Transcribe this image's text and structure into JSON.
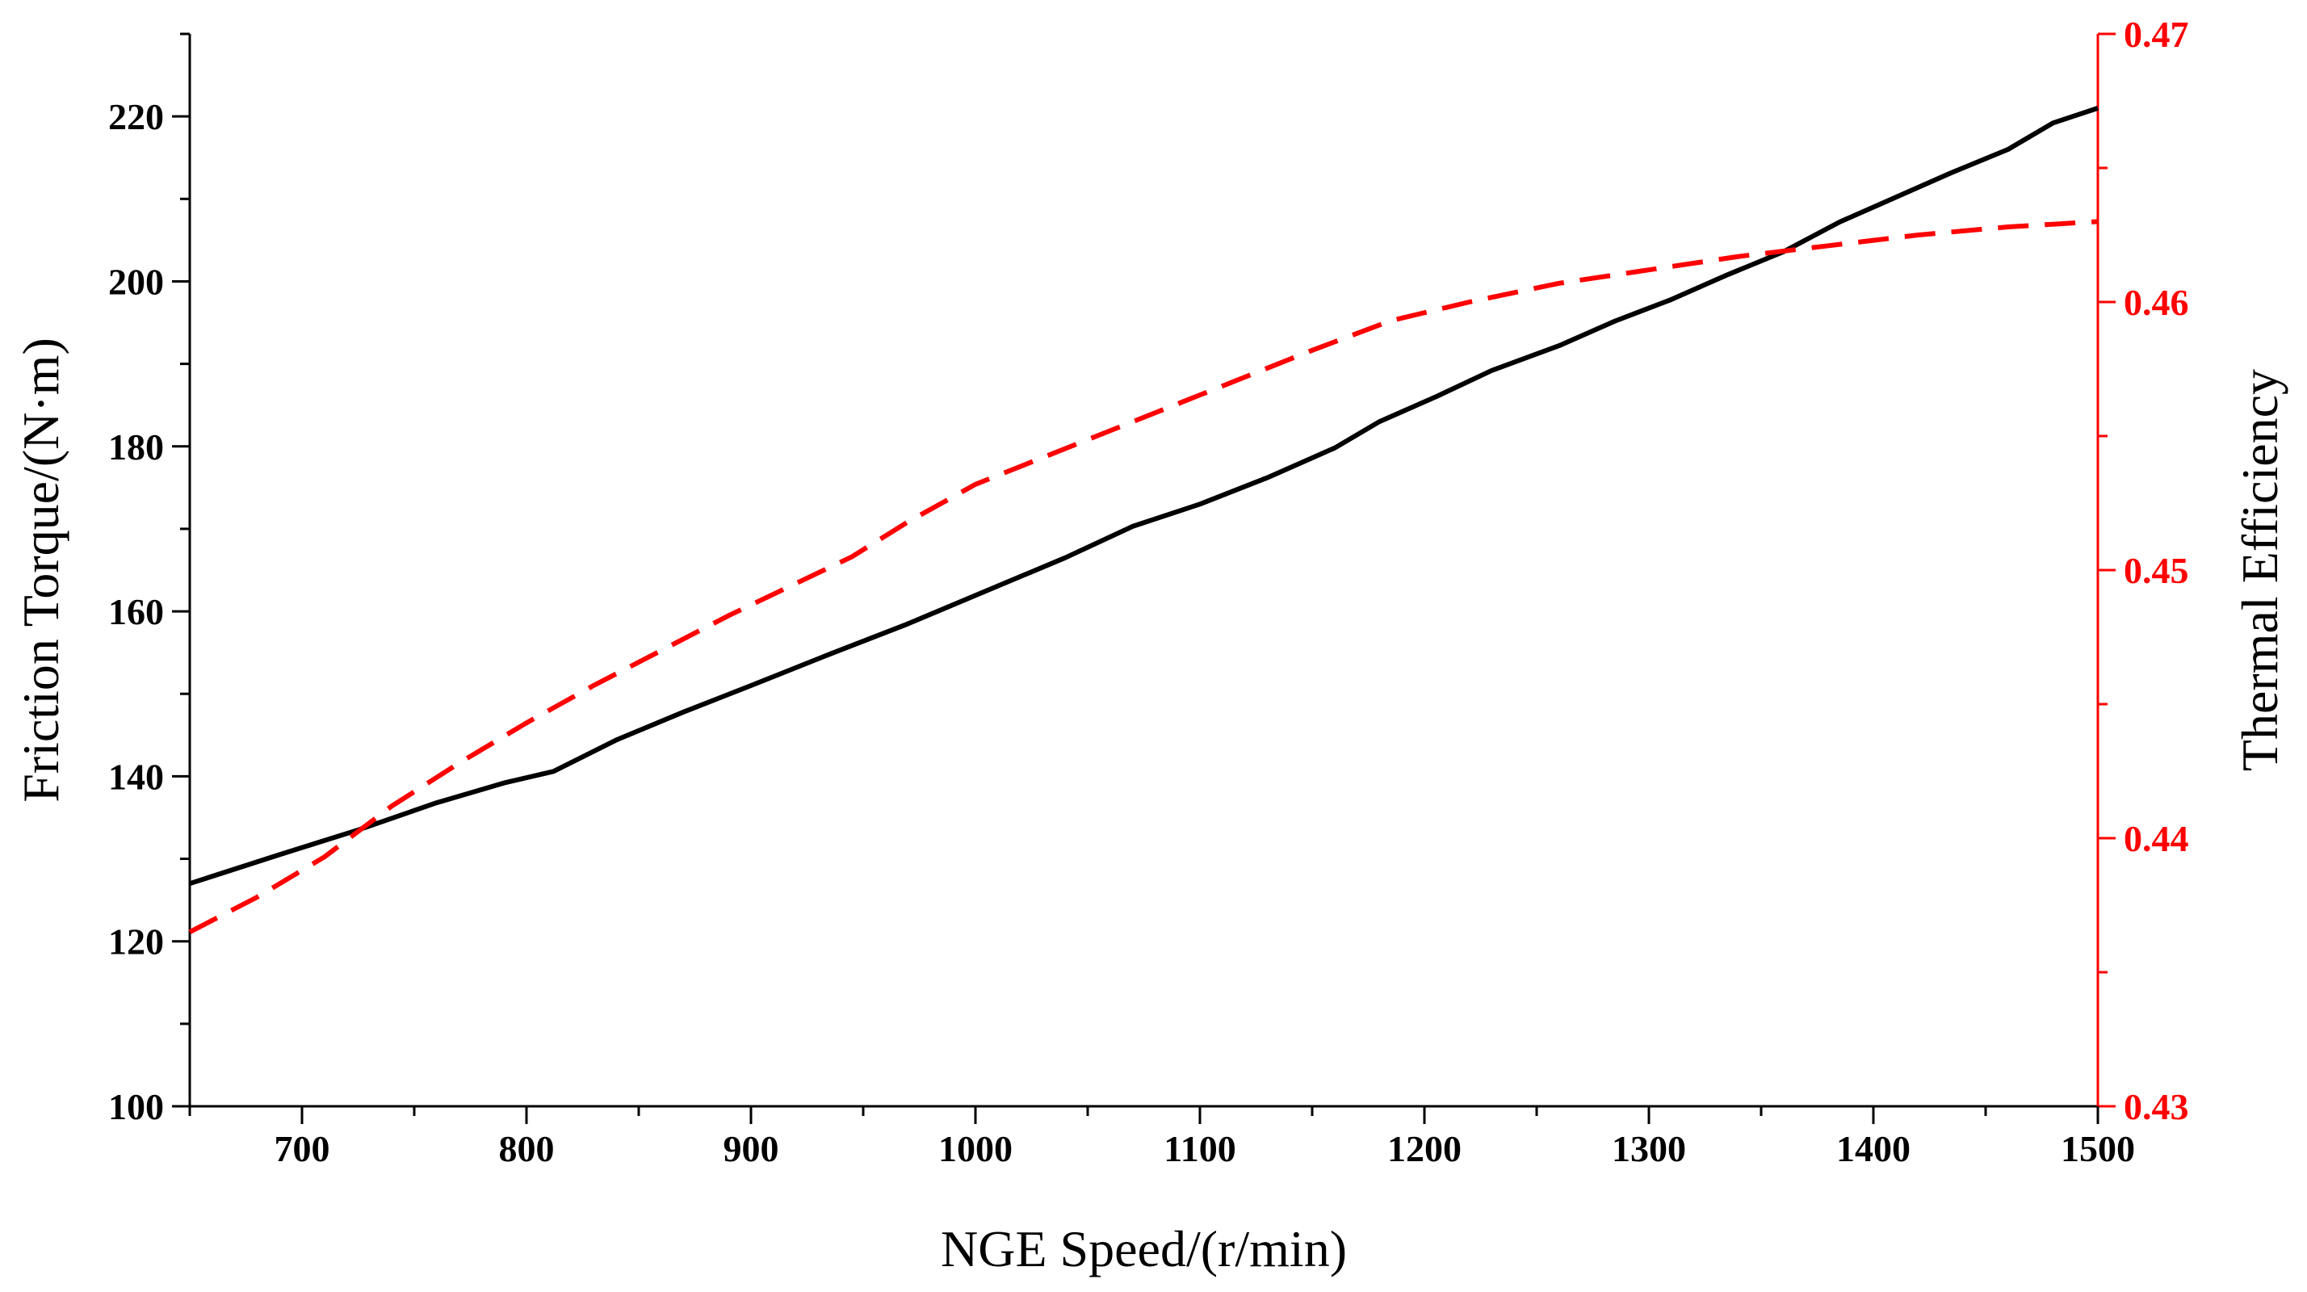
{
  "chart_data": {
    "type": "line",
    "title": "",
    "xlabel": "NGE Speed/(r/min)",
    "ylabel": "Friction Torque/(N·m)",
    "y2label": "Thermal Efficiency",
    "xlim": [
      650,
      1500
    ],
    "ylim": [
      100,
      230
    ],
    "y2lim": [
      0.43,
      0.47
    ],
    "x_ticks": [
      700,
      800,
      900,
      1000,
      1100,
      1200,
      1300,
      1400,
      1500
    ],
    "y_ticks": [
      100,
      120,
      140,
      160,
      180,
      200,
      220
    ],
    "y2_ticks": [
      "0.43",
      "0.44",
      "0.45",
      "0.46",
      "0.47"
    ],
    "colors": {
      "torque": "#000000",
      "efficiency": "#ff0000",
      "axis": "#000000",
      "right_axis": "#ff0000"
    },
    "series": [
      {
        "name": "Friction Torque",
        "axis": "left",
        "style": "solid",
        "x": [
          650,
          690,
          725,
          760,
          790,
          812,
          840,
          870,
          900,
          935,
          970,
          1005,
          1040,
          1070,
          1100,
          1130,
          1160,
          1180,
          1205,
          1230,
          1260,
          1285,
          1310,
          1335,
          1360,
          1385,
          1410,
          1435,
          1460,
          1480,
          1500
        ],
        "values": [
          127,
          130.5,
          133.5,
          136.8,
          139.2,
          140.6,
          144.4,
          147.8,
          151.0,
          154.8,
          158.5,
          162.5,
          166.5,
          170.3,
          173.0,
          176.2,
          179.8,
          183.0,
          186.0,
          189.2,
          192.2,
          195.2,
          197.8,
          200.8,
          203.6,
          207.2,
          210.2,
          213.2,
          216.0,
          219.2,
          221.0
        ]
      },
      {
        "name": "Thermal Efficiency",
        "axis": "right",
        "style": "dashed",
        "x": [
          650,
          680,
          710,
          740,
          770,
          800,
          830,
          860,
          890,
          920,
          945,
          970,
          1000,
          1030,
          1060,
          1090,
          1120,
          1150,
          1185,
          1220,
          1260,
          1300,
          1340,
          1380,
          1420,
          1460,
          1500
        ],
        "values": [
          0.4365,
          0.4378,
          0.4393,
          0.4412,
          0.4428,
          0.4443,
          0.4457,
          0.447,
          0.4483,
          0.4495,
          0.4505,
          0.4518,
          0.4532,
          0.4542,
          0.4552,
          0.4562,
          0.4572,
          0.4582,
          0.4593,
          0.46,
          0.4607,
          0.4612,
          0.4617,
          0.4621,
          0.4625,
          0.4628,
          0.463
        ]
      }
    ]
  }
}
